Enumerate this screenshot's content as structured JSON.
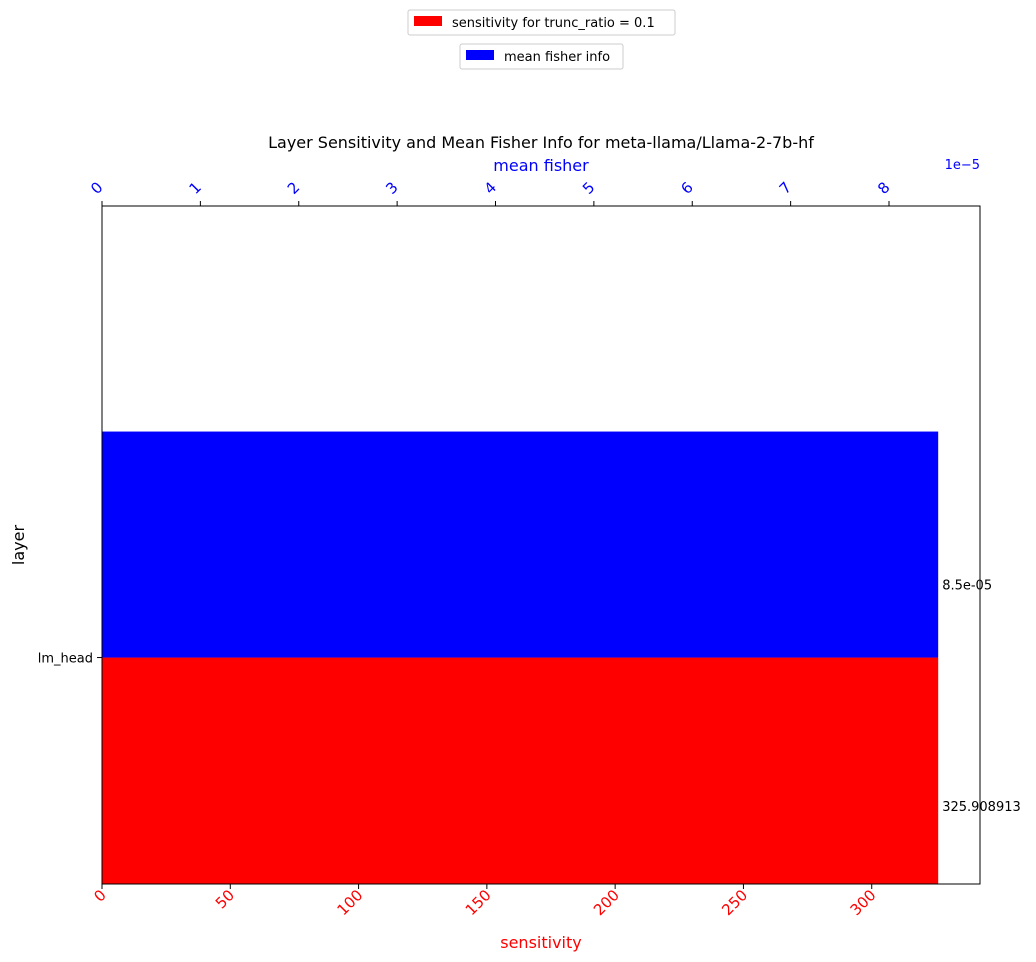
{
  "chart_data": {
    "type": "bar",
    "orientation": "horizontal",
    "title": "Layer Sensitivity and Mean Fisher Info for meta-llama/Llama-2-7b-hf",
    "ylabel": "layer",
    "categories": [
      "lm_head"
    ],
    "bottom_axis": {
      "label": "sensitivity",
      "color": "#ff0000",
      "ticks": [
        0,
        50,
        100,
        150,
        200,
        250,
        300
      ],
      "range": [
        0,
        342.2
      ]
    },
    "top_axis": {
      "label": "mean fisher",
      "color": "#0000ff",
      "ticks": [
        0,
        1,
        2,
        3,
        4,
        5,
        6,
        7,
        8
      ],
      "multiplier_label": "1e−5",
      "range": [
        0,
        8.925
      ]
    },
    "series": [
      {
        "name": "sensitivity for trunc_ratio = 0.1",
        "color": "#ff0000",
        "axis": "bottom",
        "values": [
          325.908913
        ],
        "data_labels": [
          "325.908913"
        ]
      },
      {
        "name": "mean fisher info",
        "color": "#0000ff",
        "axis": "top",
        "values": [
          8.5
        ],
        "data_labels": [
          "8.5e-05"
        ]
      }
    ],
    "legend": "top-center",
    "grid": false
  }
}
